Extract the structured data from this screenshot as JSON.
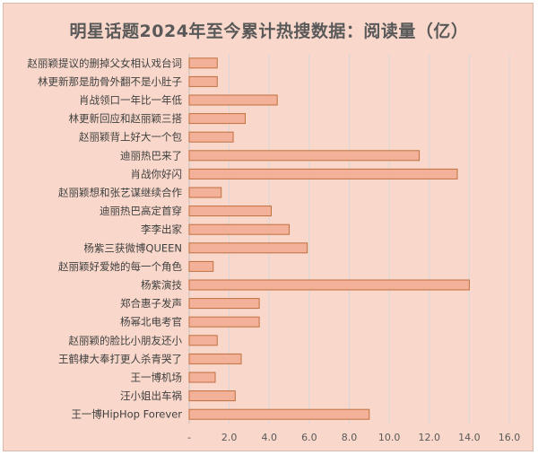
{
  "chart_data": {
    "type": "bar",
    "orientation": "horizontal",
    "title": "明星话题2024年至今累计热搜数据：阅读量（亿）",
    "xlabel": "",
    "ylabel": "",
    "xlim": [
      0,
      16
    ],
    "x_ticks": [
      "-",
      "2.0",
      "4.0",
      "6.0",
      "8.0",
      "10.0",
      "12.0",
      "14.0",
      "16.0"
    ],
    "grid": "vertical",
    "legend": "none",
    "bar_color": "#f4b19a",
    "bar_edge_color": "#c0703f",
    "categories": [
      "赵丽颖提议的删掉父女相认戏台词",
      "林更新那是肋骨外翻不是小肚子",
      "肖战领口一年比一年低",
      "林更新回应和赵丽颖三搭",
      "赵丽颖背上好大一个包",
      "迪丽热巴来了",
      "肖战你好闪",
      "赵丽颖想和张艺谋继续合作",
      "迪丽热巴高定首穿",
      "李李出家",
      "杨紫三获微博QUEEN",
      "赵丽颖好爱她的每一个角色",
      "杨紫演技",
      "郑合惠子发声",
      "杨幂北电考官",
      "赵丽颖的脸比小朋友还小",
      "王鹤棣大奉打更人杀青哭了",
      "王一博机场",
      "汪小姐出车祸",
      "王一博HipHop Forever"
    ],
    "values": [
      1.4,
      1.4,
      4.4,
      2.8,
      2.2,
      11.5,
      13.4,
      1.6,
      4.1,
      5.0,
      5.9,
      1.2,
      14.0,
      3.5,
      3.5,
      1.4,
      2.6,
      1.3,
      2.3,
      9.0
    ]
  }
}
